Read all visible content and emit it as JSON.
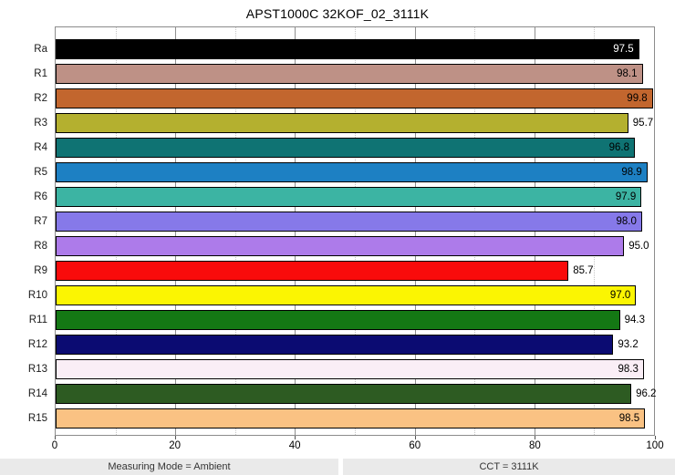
{
  "title": "APST1000C 32KOF_02_3111K",
  "chart_data": {
    "type": "bar",
    "orientation": "horizontal",
    "title": "APST1000C 32KOF_02_3111K",
    "xlabel": "",
    "ylabel": "",
    "xlim": [
      0,
      100
    ],
    "x_major_ticks": [
      0,
      20,
      40,
      60,
      80,
      100
    ],
    "x_minor_gridlines": [
      10,
      30,
      50,
      70,
      90
    ],
    "grid": "vertical",
    "legend": "none",
    "categories": [
      "Ra",
      "R1",
      "R2",
      "R3",
      "R4",
      "R5",
      "R6",
      "R7",
      "R8",
      "R9",
      "R10",
      "R11",
      "R12",
      "R13",
      "R14",
      "R15"
    ],
    "values": [
      97.5,
      98.1,
      99.8,
      95.7,
      96.8,
      98.9,
      97.9,
      98.0,
      95.0,
      85.7,
      97.0,
      94.3,
      93.2,
      98.3,
      96.2,
      98.5
    ],
    "value_labels": [
      "97.5",
      "98.1",
      "99.8",
      "95.7",
      "96.8",
      "98.9",
      "97.9",
      "98.0",
      "95.0",
      "85.7",
      "97.0",
      "94.3",
      "93.2",
      "98.3",
      "96.2",
      "98.5"
    ],
    "bar_colors": [
      "#000000",
      "#BE9186",
      "#C2662E",
      "#B4B02F",
      "#0F7373",
      "#1D80C3",
      "#3CB4A3",
      "#8679E9",
      "#AD7BEA",
      "#F90B0B",
      "#FBF502",
      "#147814",
      "#0B0B72",
      "#FAEEF6",
      "#2D5B22",
      "#FAC283"
    ],
    "value_label_inside": [
      true,
      true,
      true,
      false,
      true,
      true,
      true,
      true,
      false,
      false,
      true,
      false,
      false,
      true,
      false,
      true
    ],
    "value_label_text_colors": [
      "#ffffff",
      "#000000",
      "#000000",
      "#000000",
      "#000000",
      "#000000",
      "#000000",
      "#000000",
      "#000000",
      "#000000",
      "#000000",
      "#000000",
      "#000000",
      "#000000",
      "#000000",
      "#000000"
    ]
  },
  "footer": {
    "left_label": "Measuring Mode = Ambient",
    "right_label": "CCT = 3111K"
  },
  "colors": {
    "background": "#FFFFFF",
    "plot_border": "#8C8C8C",
    "major_gridline": "#8F8F8F",
    "minor_gridline": "#C6C6C6",
    "bar_border": "#000000",
    "footer_background": "#EAEAEA"
  }
}
